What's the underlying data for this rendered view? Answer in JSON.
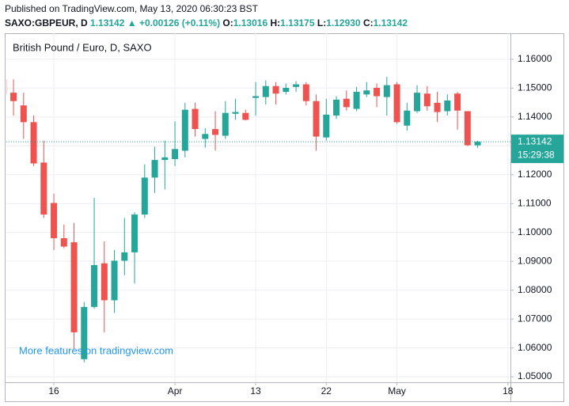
{
  "published": "Published on TradingView.com, May 13, 2020 06:30:23 BST",
  "header": {
    "symbol": "SAXO:GBPEUR, D",
    "price": "1.13142",
    "change": "▲ +0.00126 (+0.11%)",
    "open_label": "O:",
    "open": "1.13016",
    "high_label": "H:",
    "high": "1.13175",
    "low_label": "L:",
    "low": "1.12930",
    "close_label": "C:",
    "close": "1.13142"
  },
  "watermark": "More features on tradingview.com",
  "chart_data": {
    "type": "candlestick",
    "title": "British Pound / Euro, D, SAXO",
    "up_color": "#26a69a",
    "down_color": "#ef5350",
    "grid": true,
    "open": [
      1.153,
      1.1484,
      1.144,
      1.1382,
      1.1242,
      1.1102,
      1.098,
      1.0966,
      1.0561,
      1.0742,
      1.0893,
      1.0765,
      1.0902,
      1.0931,
      1.1062,
      1.119,
      1.1251,
      1.1254,
      1.1283,
      1.1428,
      1.1324,
      1.1358,
      1.1335,
      1.1411,
      1.1414,
      1.1466,
      1.1469,
      1.1507,
      1.1487,
      1.1504,
      1.1513,
      1.1455,
      1.1329,
      1.1405,
      1.1463,
      1.1428,
      1.1478,
      1.1501,
      1.1469,
      1.1513,
      1.137,
      1.142,
      1.1481,
      1.1449,
      1.142,
      1.1481,
      1.142,
      1.13016
    ],
    "high": [
      1.1536,
      1.153,
      1.1484,
      1.1405,
      1.1318,
      1.1134,
      1.1027,
      1.1033,
      1.0759,
      1.112,
      1.0969,
      1.0939,
      1.105,
      1.107,
      1.1236,
      1.1297,
      1.1318,
      1.1385,
      1.1449,
      1.1449,
      1.1361,
      1.142,
      1.1455,
      1.1463,
      1.1425,
      1.1521,
      1.1527,
      1.1521,
      1.1516,
      1.1524,
      1.1521,
      1.1478,
      1.1463,
      1.1472,
      1.1492,
      1.1504,
      1.1521,
      1.1516,
      1.1539,
      1.1521,
      1.1449,
      1.151,
      1.1507,
      1.1487,
      1.1478,
      1.1487,
      1.142,
      1.13175
    ],
    "low": [
      1.1469,
      1.1405,
      1.1324,
      1.123,
      1.105,
      1.0939,
      1.0945,
      1.0596,
      1.055,
      1.0736,
      1.0654,
      1.0721,
      1.0852,
      1.0823,
      1.105,
      1.1137,
      1.1149,
      1.123,
      1.126,
      1.1332,
      1.1294,
      1.1283,
      1.1324,
      1.139,
      1.1388,
      1.1405,
      1.1443,
      1.1443,
      1.1478,
      1.1487,
      1.144,
      1.1283,
      1.1318,
      1.1393,
      1.1422,
      1.142,
      1.1469,
      1.1434,
      1.1405,
      1.1376,
      1.1353,
      1.1414,
      1.1422,
      1.1382,
      1.1405,
      1.1356,
      1.1299,
      1.1293
    ],
    "close": [
      1.1478,
      1.1455,
      1.1382,
      1.1239,
      1.1062,
      1.098,
      1.0951,
      1.0654,
      1.0742,
      1.0887,
      1.0765,
      1.0902,
      1.0931,
      1.1062,
      1.119,
      1.1251,
      1.126,
      1.1289,
      1.1425,
      1.1358,
      1.1341,
      1.1338,
      1.1414,
      1.1417,
      1.139,
      1.1472,
      1.1507,
      1.1481,
      1.1501,
      1.1513,
      1.1455,
      1.1332,
      1.1408,
      1.146,
      1.1434,
      1.1487,
      1.1492,
      1.1472,
      1.151,
      1.1382,
      1.1422,
      1.1484,
      1.1437,
      1.1417,
      1.1457,
      1.1422,
      1.1302,
      1.13142
    ],
    "xlim": [
      0.29,
      50.25
    ],
    "xticks": [
      {
        "value": 5,
        "label": "16"
      },
      {
        "value": 17,
        "label": "Apr"
      },
      {
        "value": 25,
        "label": "13"
      },
      {
        "value": 32,
        "label": "22"
      },
      {
        "value": 39,
        "label": "May"
      },
      {
        "value": 50,
        "label": "18"
      }
    ],
    "ylim": [
      1.0481,
      1.169
    ],
    "yticks": [
      {
        "value": 1.05,
        "label": "1.05000"
      },
      {
        "value": 1.06,
        "label": "1.06000"
      },
      {
        "value": 1.07,
        "label": "1.07000"
      },
      {
        "value": 1.08,
        "label": "1.08000"
      },
      {
        "value": 1.09,
        "label": "1.09000"
      },
      {
        "value": 1.1,
        "label": "1.10000"
      },
      {
        "value": 1.11,
        "label": "1.11000"
      },
      {
        "value": 1.12,
        "label": "1.12000"
      },
      {
        "value": 1.13,
        "label": "1.13000"
      },
      {
        "value": 1.14,
        "label": "1.14000"
      },
      {
        "value": 1.15,
        "label": "1.15000"
      },
      {
        "value": 1.16,
        "label": "1.16000"
      }
    ],
    "last_price": {
      "value": 1.13142,
      "label": "1.13142"
    },
    "countdown": "15:29:38"
  }
}
